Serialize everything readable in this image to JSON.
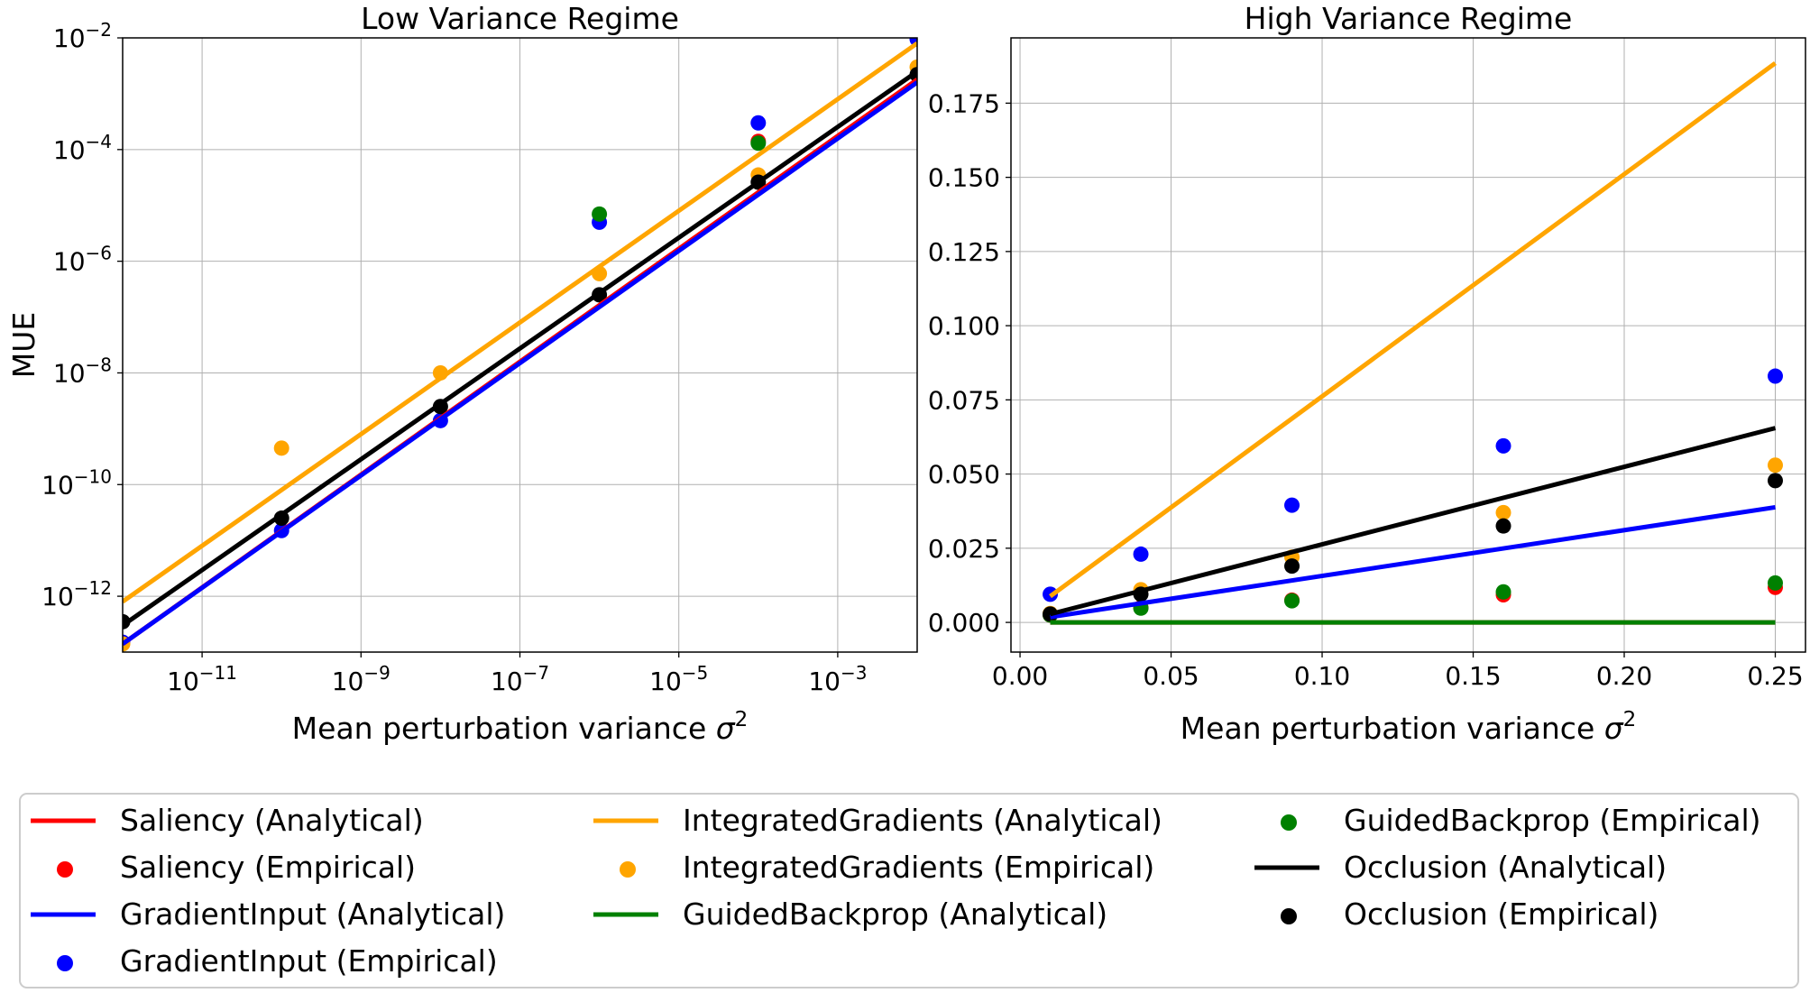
{
  "chart_data": [
    {
      "type": "scatter",
      "title": "Low Variance Regime",
      "xlabel": "Mean perturbation variance σ²",
      "ylabel": "MUE",
      "xscale": "log",
      "yscale": "log",
      "xlim": [
        1e-12,
        0.01
      ],
      "ylim": [
        1e-13,
        0.01
      ],
      "x_ticks": [
        {
          "base": "10",
          "exp": "−11"
        },
        {
          "base": "10",
          "exp": "−9"
        },
        {
          "base": "10",
          "exp": "−7"
        },
        {
          "base": "10",
          "exp": "−5"
        },
        {
          "base": "10",
          "exp": "−3"
        }
      ],
      "y_ticks": [
        {
          "base": "10",
          "exp": "−2"
        },
        {
          "base": "10",
          "exp": "−4"
        },
        {
          "base": "10",
          "exp": "−6"
        },
        {
          "base": "10",
          "exp": "−8"
        },
        {
          "base": "10",
          "exp": "−10"
        },
        {
          "base": "10",
          "exp": "−12"
        }
      ],
      "grid": true,
      "analytical": [
        {
          "name": "Saliency (Analytical)",
          "color": "#ff0000",
          "x": [
            1e-12,
            0.01
          ],
          "y": [
            1.4e-13,
            0.0018
          ]
        },
        {
          "name": "GradientInput (Analytical)",
          "color": "#0000ff",
          "x": [
            1e-12,
            0.01
          ],
          "y": [
            1.4e-13,
            0.0016
          ]
        },
        {
          "name": "IntegratedGradients (Analytical)",
          "color": "#ffa500",
          "x": [
            1e-12,
            0.01
          ],
          "y": [
            8e-13,
            0.008
          ]
        },
        {
          "name": "GuidedBackprop (Analytical)",
          "color": "#008000",
          "x": [],
          "y": []
        },
        {
          "name": "Occlusion (Analytical)",
          "color": "#000000",
          "x": [
            1e-12,
            0.01
          ],
          "y": [
            3e-13,
            0.0025
          ]
        }
      ],
      "empirical": [
        {
          "name": "Saliency (Empirical)",
          "color": "#ff0000",
          "x": [
            0.0001
          ],
          "y": [
            0.00014
          ]
        },
        {
          "name": "GradientInput (Empirical)",
          "color": "#0000ff",
          "x": [
            1e-12,
            1e-10,
            1e-08,
            1e-06,
            0.0001,
            0.01
          ],
          "y": [
            1.5e-13,
            1.5e-11,
            1.4e-09,
            5e-06,
            0.0003,
            0.0095
          ]
        },
        {
          "name": "IntegratedGradients (Empirical)",
          "color": "#ffa500",
          "x": [
            1e-12,
            1e-10,
            1e-08,
            1e-06,
            0.0001,
            0.01
          ],
          "y": [
            1.4e-13,
            4.5e-10,
            1e-08,
            6e-07,
            3.5e-05,
            0.003
          ]
        },
        {
          "name": "GuidedBackprop (Empirical)",
          "color": "#008000",
          "x": [
            1e-06,
            0.0001
          ],
          "y": [
            7e-06,
            0.00013
          ]
        },
        {
          "name": "Occlusion (Empirical)",
          "color": "#000000",
          "x": [
            1e-12,
            1e-10,
            1e-08,
            1e-06,
            0.0001,
            0.01
          ],
          "y": [
            3.5e-13,
            2.5e-11,
            2.5e-09,
            2.5e-07,
            2.6e-05,
            0.0022
          ]
        }
      ]
    },
    {
      "type": "scatter",
      "title": "High Variance Regime",
      "xlabel": "Mean perturbation variance σ²",
      "ylabel": "",
      "xscale": "linear",
      "yscale": "linear",
      "xlim": [
        -0.003,
        0.26
      ],
      "ylim": [
        -0.01,
        0.197
      ],
      "x_ticks": [
        "0.00",
        "0.05",
        "0.10",
        "0.15",
        "0.20",
        "0.25"
      ],
      "y_ticks": [
        "0.000",
        "0.025",
        "0.050",
        "0.075",
        "0.100",
        "0.125",
        "0.150",
        "0.175"
      ],
      "grid": true,
      "analytical": [
        {
          "name": "Saliency (Analytical)",
          "color": "#ff0000",
          "x": [
            0.01,
            0.25
          ],
          "y": [
            0.0,
            0.0
          ]
        },
        {
          "name": "GradientInput (Analytical)",
          "color": "#0000ff",
          "x": [
            0.01,
            0.25
          ],
          "y": [
            0.0018,
            0.0388
          ]
        },
        {
          "name": "IntegratedGradients (Analytical)",
          "color": "#ffa500",
          "x": [
            0.01,
            0.25
          ],
          "y": [
            0.0088,
            0.1885
          ]
        },
        {
          "name": "GuidedBackprop (Analytical)",
          "color": "#008000",
          "x": [
            0.01,
            0.25
          ],
          "y": [
            0.0,
            0.0
          ]
        },
        {
          "name": "Occlusion (Analytical)",
          "color": "#000000",
          "x": [
            0.01,
            0.25
          ],
          "y": [
            0.0028,
            0.0655
          ]
        }
      ],
      "empirical": [
        {
          "name": "Saliency (Empirical)",
          "color": "#ff0000",
          "x": [
            0.01,
            0.04,
            0.09,
            0.16,
            0.25
          ],
          "y": [
            0.0025,
            0.005,
            0.0075,
            0.0093,
            0.0118
          ]
        },
        {
          "name": "GradientInput (Empirical)",
          "color": "#0000ff",
          "x": [
            0.01,
            0.04,
            0.09,
            0.16,
            0.25
          ],
          "y": [
            0.0095,
            0.023,
            0.0395,
            0.0595,
            0.083
          ]
        },
        {
          "name": "IntegratedGradients (Empirical)",
          "color": "#ffa500",
          "x": [
            0.01,
            0.04,
            0.09,
            0.16,
            0.25
          ],
          "y": [
            0.003,
            0.011,
            0.022,
            0.037,
            0.053
          ]
        },
        {
          "name": "GuidedBackprop (Empirical)",
          "color": "#008000",
          "x": [
            0.01,
            0.04,
            0.09,
            0.16,
            0.25
          ],
          "y": [
            0.0025,
            0.0048,
            0.0073,
            0.0103,
            0.0133
          ]
        },
        {
          "name": "Occlusion (Empirical)",
          "color": "#000000",
          "x": [
            0.01,
            0.04,
            0.09,
            0.16,
            0.25
          ],
          "y": [
            0.0028,
            0.0095,
            0.019,
            0.0325,
            0.0478
          ]
        }
      ]
    }
  ],
  "legend": {
    "placement": "bottom",
    "entries": [
      {
        "label": "Saliency (Analytical)",
        "kind": "line",
        "color": "#ff0000"
      },
      {
        "label": "Saliency (Empirical)",
        "kind": "dot",
        "color": "#ff0000"
      },
      {
        "label": "GradientInput (Analytical)",
        "kind": "line",
        "color": "#0000ff"
      },
      {
        "label": "GradientInput (Empirical)",
        "kind": "dot",
        "color": "#0000ff"
      },
      {
        "label": "IntegratedGradients (Analytical)",
        "kind": "line",
        "color": "#ffa500"
      },
      {
        "label": "IntegratedGradients (Empirical)",
        "kind": "dot",
        "color": "#ffa500"
      },
      {
        "label": "GuidedBackprop (Analytical)",
        "kind": "line",
        "color": "#008000"
      },
      {
        "label": "GuidedBackprop (Empirical)",
        "kind": "dot",
        "color": "#008000"
      },
      {
        "label": "Occlusion (Analytical)",
        "kind": "line",
        "color": "#000000"
      },
      {
        "label": "Occlusion (Empirical)",
        "kind": "dot",
        "color": "#000000"
      }
    ]
  }
}
